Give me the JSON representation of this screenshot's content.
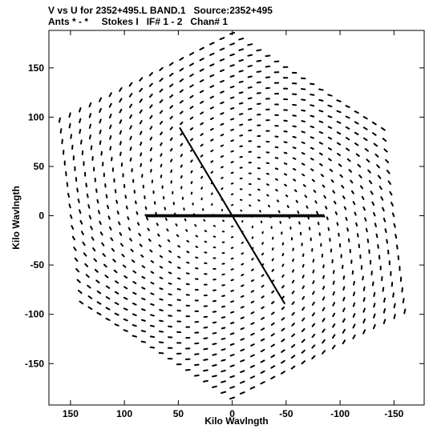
{
  "header": {
    "title_line1": "V vs U for 2352+495.L BAND.1   Source:2352+495",
    "title_line2": "Ants * - *     Stokes I   IF# 1 - 2   Chan# 1"
  },
  "chart_data": {
    "type": "scatter",
    "title": "V vs U for 2352+495.L BAND.1   Source:2352+495",
    "subtitle": "Ants * - *     Stokes I   IF# 1 - 2   Chan# 1",
    "xlabel": "Kilo Wavlngth",
    "ylabel": "Kilo Wavlngth",
    "xlim": [
      170,
      -178
    ],
    "ylim": [
      -192,
      188
    ],
    "x_ticks": [
      150,
      100,
      50,
      0,
      -50,
      -100,
      -150
    ],
    "x_tick_labels": [
      "150",
      "100",
      "50",
      "0",
      "-50",
      "-100",
      "-150"
    ],
    "y_ticks": [
      150,
      100,
      50,
      0,
      -50,
      -100,
      -150
    ],
    "y_tick_labels": [
      "150",
      "100",
      "50",
      "0",
      "-50",
      "-100",
      "-150"
    ],
    "grid": false,
    "marker_color": "#000000",
    "arm_endpoints": [
      {
        "u": 0,
        "v": 185
      },
      {
        "u": 160,
        "v": 97
      },
      {
        "u": 140,
        "v": -88
      },
      {
        "u": 0,
        "v": -185
      },
      {
        "u": -160,
        "v": -97
      },
      {
        "u": -140,
        "v": 88
      }
    ],
    "dense_lines": [
      {
        "from": [
          0,
          0
        ],
        "to": [
          48,
          88
        ]
      },
      {
        "from": [
          0,
          0
        ],
        "to": [
          -48,
          -88
        ]
      },
      {
        "from": [
          0,
          0
        ],
        "to": [
          80,
          0
        ]
      },
      {
        "from": [
          0,
          0
        ],
        "to": [
          -85,
          0
        ]
      }
    ]
  }
}
